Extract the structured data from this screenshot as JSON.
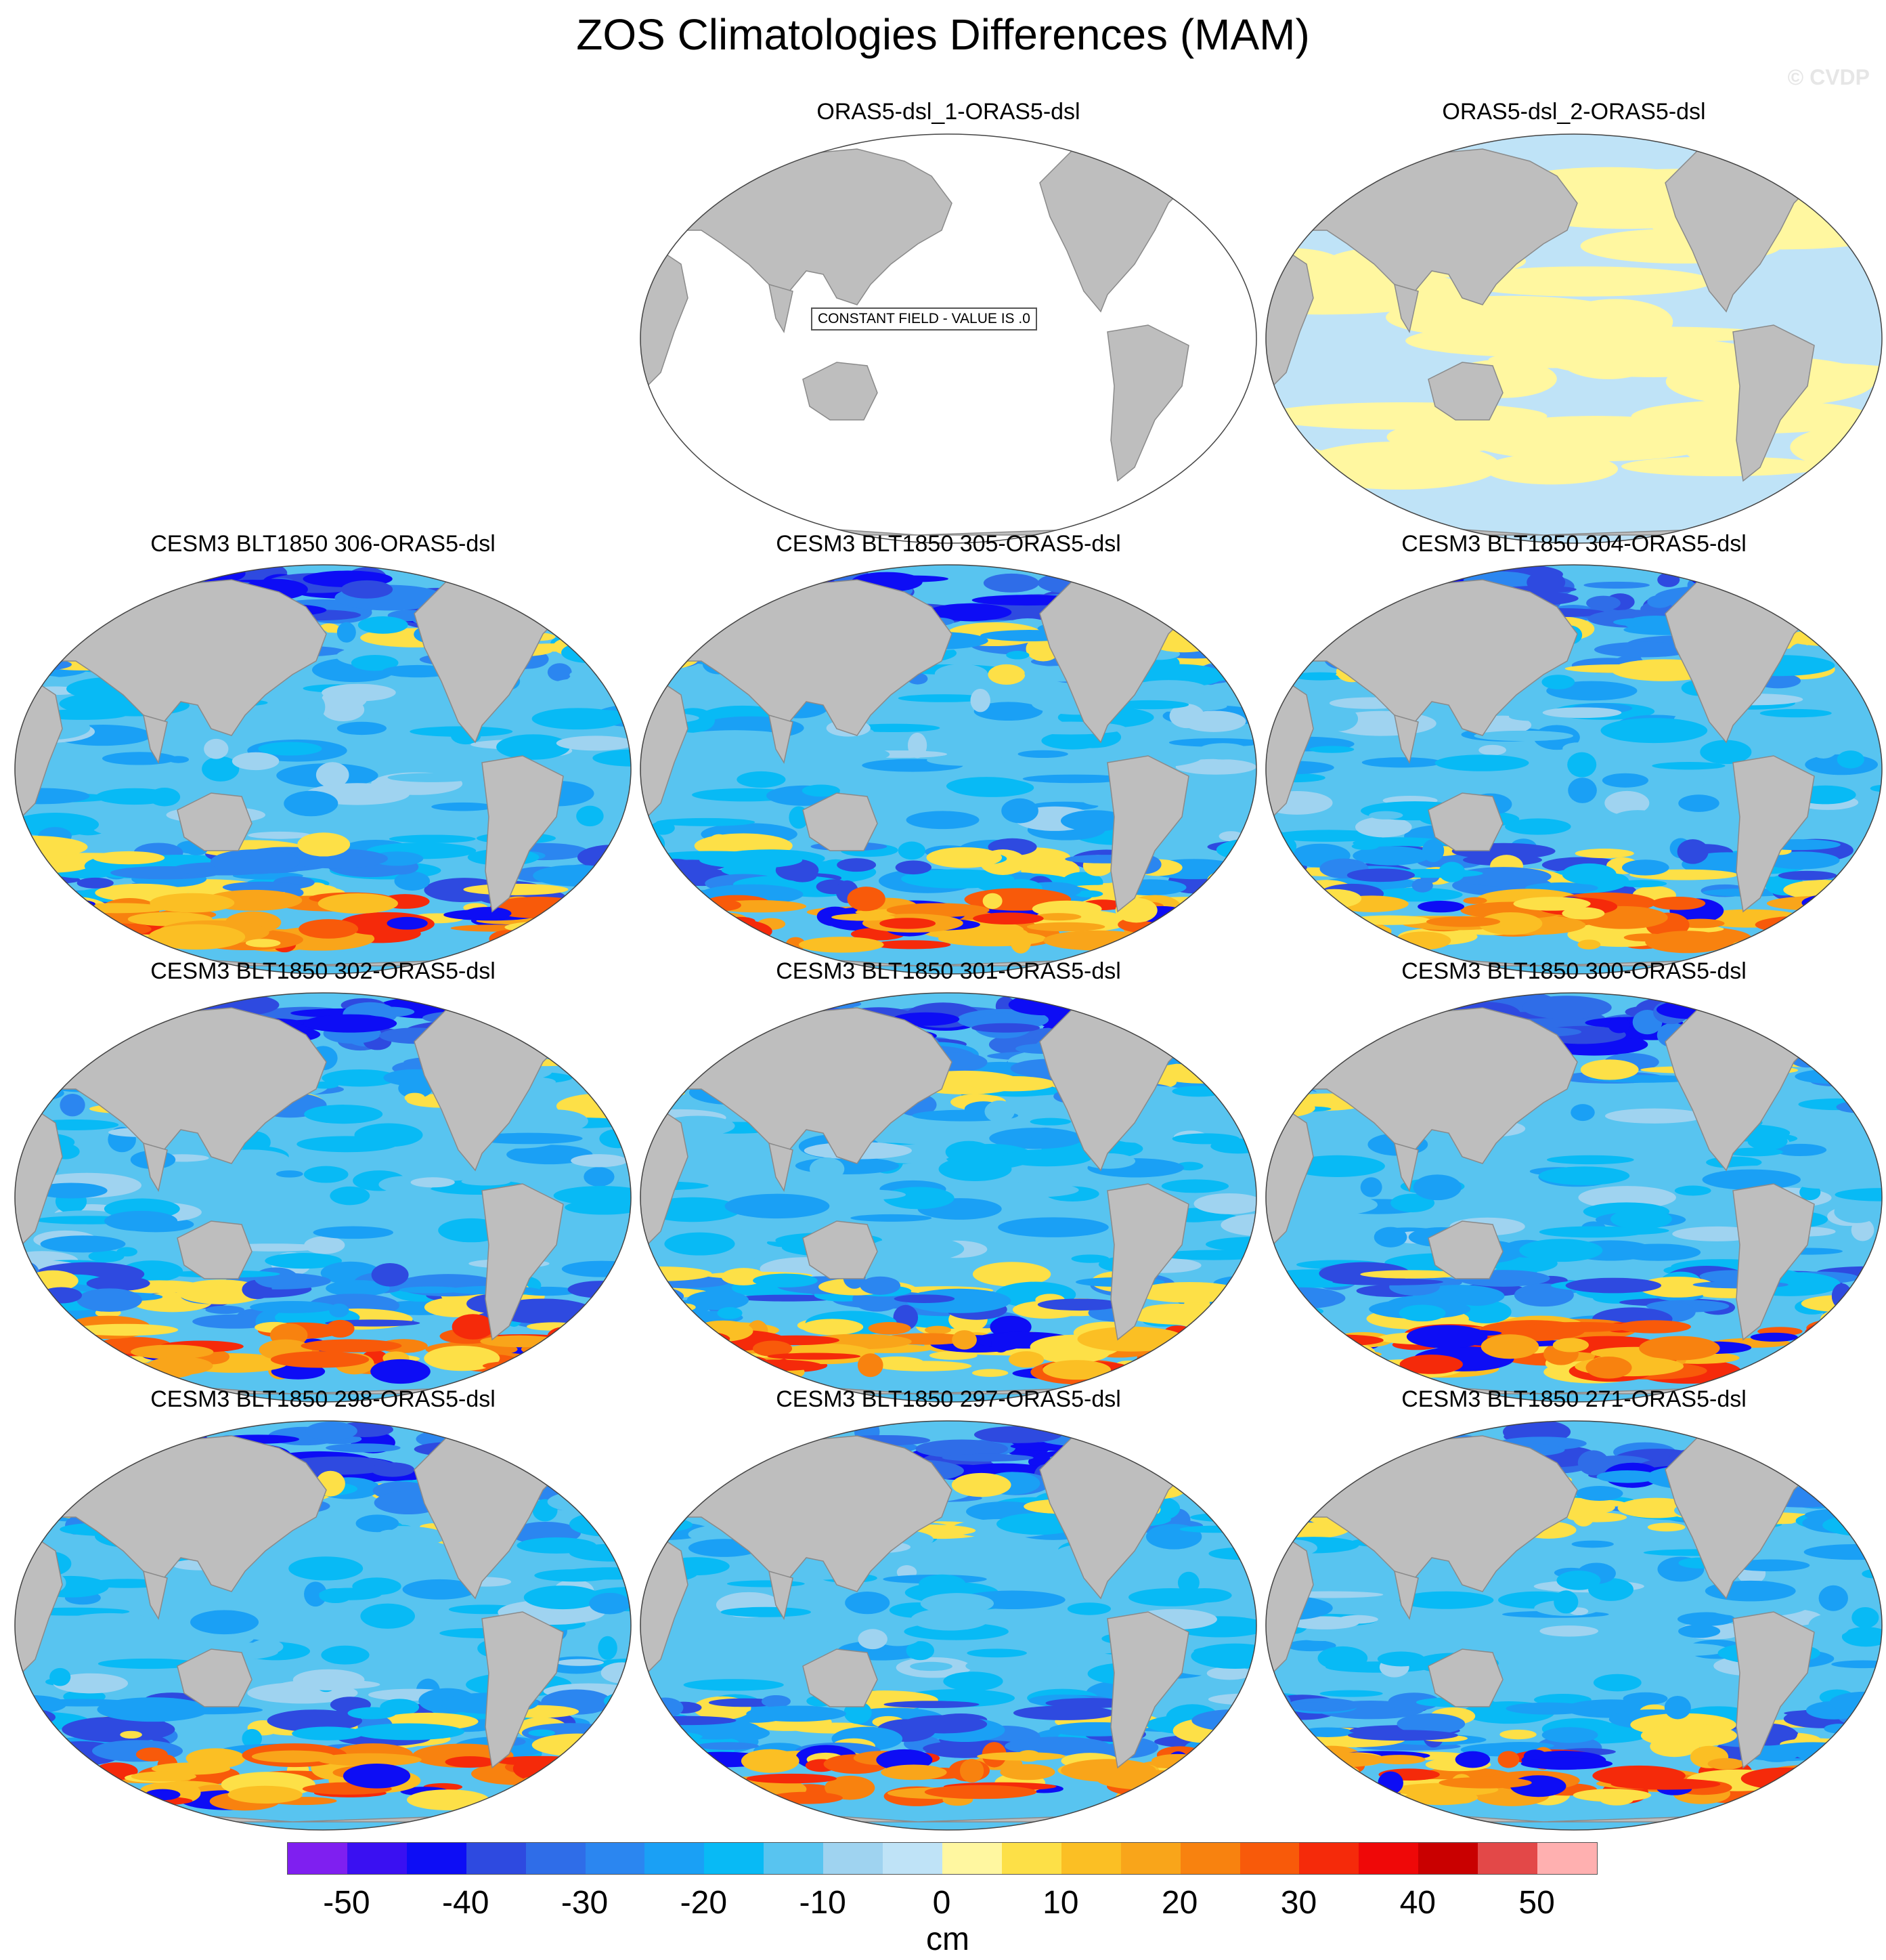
{
  "title": "ZOS Climatologies Differences (MAM)",
  "watermark": "© CVDP",
  "panels": [
    {
      "title": "ORAS5-dsl_1-ORAS5-dsl",
      "kind": "constant",
      "note": "CONSTANT FIELD - VALUE IS .0"
    },
    {
      "title": "ORAS5-dsl_2-ORAS5-dsl",
      "kind": "near-zero"
    },
    {
      "title": "CESM3 BLT1850 306-ORAS5-dsl",
      "kind": "model"
    },
    {
      "title": "CESM3 BLT1850 305-ORAS5-dsl",
      "kind": "model"
    },
    {
      "title": "CESM3 BLT1850 304-ORAS5-dsl",
      "kind": "model"
    },
    {
      "title": "CESM3 BLT1850 302-ORAS5-dsl",
      "kind": "model"
    },
    {
      "title": "CESM3 BLT1850 301-ORAS5-dsl",
      "kind": "model"
    },
    {
      "title": "CESM3 BLT1850 300-ORAS5-dsl",
      "kind": "model"
    },
    {
      "title": "CESM3 BLT1850 298-ORAS5-dsl",
      "kind": "model"
    },
    {
      "title": "CESM3 BLT1850 297-ORAS5-dsl",
      "kind": "model"
    },
    {
      "title": "CESM3 BLT1850 271-ORAS5-dsl",
      "kind": "model"
    }
  ],
  "colorbar": {
    "units": "cm",
    "tick_labels": [
      "-50",
      "-40",
      "-30",
      "-20",
      "-10",
      "0",
      "10",
      "20",
      "30",
      "40",
      "50"
    ],
    "colors": [
      "#7f1ff0",
      "#3a10f2",
      "#0d0df5",
      "#2e4ae0",
      "#2f6de8",
      "#2b86f0",
      "#1aa0f5",
      "#08baf5",
      "#58c4f0",
      "#9fd3f0",
      "#bfe3f7",
      "#fff7a0",
      "#fde047",
      "#fbbf24",
      "#f9a51a",
      "#f8820f",
      "#f85a0a",
      "#f52a0a",
      "#ef0808",
      "#c90000",
      "#e34848",
      "#ffb0b0"
    ]
  },
  "map_colors": {
    "land": "#bebebe",
    "coast": "#8a8a8a",
    "ice": "#ffffff"
  }
}
